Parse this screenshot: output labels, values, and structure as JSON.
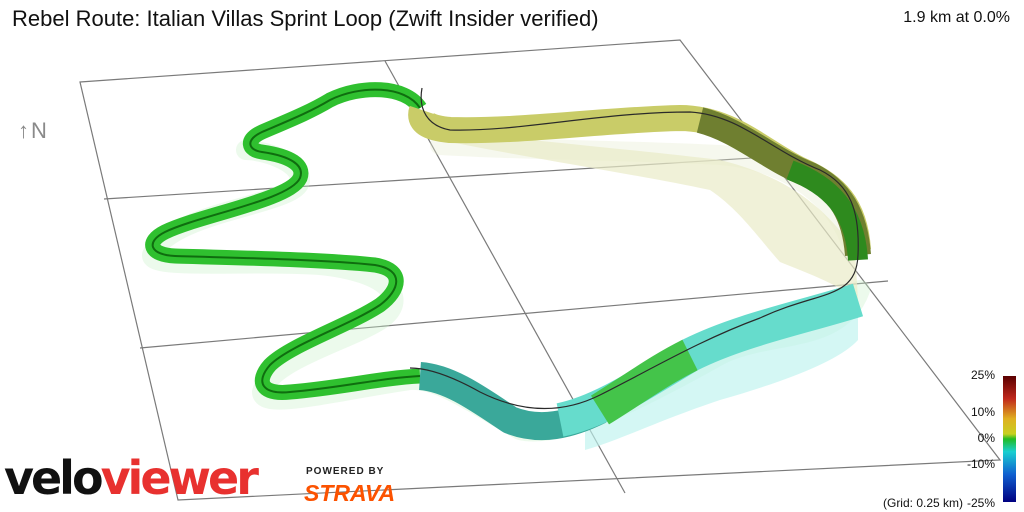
{
  "header": {
    "title": "Rebel Route: Italian Villas Sprint Loop (Zwift Insider verified)",
    "stats": "1.9 km at 0.0%"
  },
  "compass": {
    "label": "↑N",
    "icon": "north-arrow-icon"
  },
  "branding": {
    "wordmark_part1": "velo",
    "wordmark_part2": "viewer",
    "powered_by": "POWERED BY",
    "partner": "STRAVA",
    "wordmark_color_1": "#111111",
    "wordmark_color_2": "#e8312f",
    "partner_color": "#fc5200"
  },
  "legend": {
    "max_label": "25%",
    "label_10": "10%",
    "label_0": "0%",
    "label_neg10": "-10%",
    "min_label": "-25%",
    "grid_note": "(Grid: 0.25 km)",
    "gradient_colors": [
      "#5a0000",
      "#c0281c",
      "#f0a020",
      "#d8d020",
      "#22bb22",
      "#1ad0d0",
      "#1070d0",
      "#000080"
    ]
  }
}
